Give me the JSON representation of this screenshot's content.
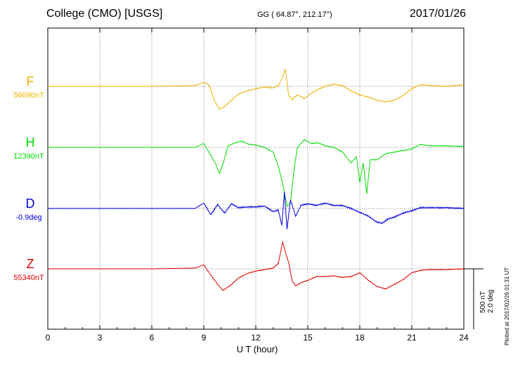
{
  "header": {
    "station": "College (CMO)  [USGS]",
    "coords": "GG ( 64.87°, 212.17°)",
    "date": "2017/01/26"
  },
  "scale_note": {
    "line1": "500 nT",
    "line2": "2.0 deg"
  },
  "plotted_note": "Plotted at 2017/02/26 01:31  UT",
  "colors": {
    "F": "#f0b000",
    "H": "#00dd00",
    "D": "#0000dd",
    "Z": "#dd0000",
    "grid": "#555555"
  },
  "chart_data": {
    "type": "line",
    "xlabel": "U T (hour)",
    "xlim": [
      0,
      24
    ],
    "xticks": [
      0,
      3,
      6,
      9,
      12,
      15,
      18,
      21,
      24
    ],
    "grid": true,
    "series": [
      {
        "name": "F",
        "baseline_label": "56690nT",
        "color": "#f0b000",
        "x": [
          0,
          3,
          6,
          8.5,
          9.0,
          9.3,
          9.6,
          9.9,
          10.2,
          10.6,
          11.0,
          11.5,
          12.0,
          12.5,
          13.0,
          13.3,
          13.5,
          13.7,
          13.9,
          14.1,
          14.4,
          14.8,
          15.2,
          15.6,
          16.0,
          16.5,
          17.0,
          17.5,
          18.0,
          18.5,
          19.0,
          19.5,
          20.0,
          20.5,
          21.0,
          21.5,
          22.0,
          23.0,
          24.0
        ],
        "y": [
          0,
          0,
          0,
          5,
          25,
          10,
          -90,
          -150,
          -130,
          -90,
          -50,
          -30,
          -15,
          -5,
          -10,
          5,
          50,
          110,
          -60,
          -85,
          -55,
          -80,
          -45,
          -20,
          0,
          15,
          5,
          -30,
          -55,
          -70,
          -90,
          -100,
          -90,
          -60,
          -15,
          10,
          5,
          0,
          10
        ]
      },
      {
        "name": "H",
        "baseline_label": "12390nT",
        "color": "#00dd00",
        "x": [
          0,
          3,
          6,
          8.5,
          9.0,
          9.4,
          9.7,
          9.9,
          10.1,
          10.4,
          10.8,
          11.2,
          11.6,
          12.0,
          12.5,
          13.0,
          13.3,
          13.6,
          13.8,
          14.0,
          14.2,
          14.4,
          14.8,
          15.2,
          15.6,
          16.0,
          16.5,
          17.0,
          17.5,
          17.8,
          18.0,
          18.2,
          18.4,
          18.6,
          19.0,
          19.5,
          20.0,
          20.5,
          21.0,
          21.5,
          22.0,
          23.0,
          24.0
        ],
        "y": [
          0,
          0,
          0,
          0,
          25,
          -50,
          -110,
          -170,
          -110,
          10,
          30,
          40,
          20,
          15,
          0,
          -30,
          -120,
          -260,
          -380,
          -360,
          -150,
          0,
          50,
          25,
          30,
          10,
          0,
          -30,
          -100,
          -60,
          -230,
          -100,
          -300,
          -80,
          -80,
          -40,
          -30,
          -20,
          -10,
          20,
          10,
          10,
          5
        ]
      },
      {
        "name": "D",
        "baseline_label": "-0.9deg",
        "color": "#0000dd",
        "x": [
          0,
          3,
          6,
          8.5,
          9.0,
          9.4,
          9.8,
          10.2,
          10.6,
          11.0,
          11.5,
          12.0,
          12.5,
          13.0,
          13.3,
          13.5,
          13.65,
          13.8,
          14.0,
          14.3,
          14.6,
          15.0,
          15.5,
          16.0,
          16.5,
          17.0,
          17.5,
          18.0,
          18.5,
          19.0,
          19.3,
          19.6,
          20.0,
          20.5,
          21.0,
          21.5,
          22.0,
          23.0,
          24.0
        ],
        "y": [
          0,
          0,
          0,
          0,
          0.35,
          -0.4,
          0.25,
          -0.3,
          0.3,
          0.05,
          0.1,
          0.1,
          0.15,
          -0.2,
          -0.1,
          -1.1,
          1.05,
          -1.35,
          0.55,
          -0.5,
          0.2,
          0.3,
          0.2,
          0.35,
          0.2,
          0.2,
          0.0,
          -0.25,
          -0.5,
          -0.9,
          -0.95,
          -0.7,
          -0.55,
          -0.3,
          -0.15,
          0.05,
          0.05,
          0.05,
          0.0
        ]
      },
      {
        "name": "Z",
        "baseline_label": "55340nT",
        "color": "#dd0000",
        "x": [
          0,
          3,
          6,
          8.5,
          9.0,
          9.4,
          9.8,
          10.1,
          10.5,
          11.0,
          11.5,
          12.0,
          12.5,
          13.0,
          13.3,
          13.55,
          13.75,
          13.9,
          14.1,
          14.3,
          14.6,
          15.0,
          15.5,
          16.0,
          16.5,
          17.0,
          17.5,
          18.0,
          18.5,
          19.0,
          19.5,
          20.0,
          20.5,
          21.0,
          21.5,
          22.0,
          23.0,
          24.0
        ],
        "y": [
          0,
          0,
          0,
          5,
          25,
          -40,
          -100,
          -140,
          -110,
          -60,
          -30,
          -15,
          -5,
          5,
          35,
          175,
          90,
          40,
          -80,
          -110,
          -90,
          -75,
          -50,
          -50,
          -45,
          -55,
          -50,
          -25,
          -75,
          -115,
          -130,
          -100,
          -70,
          -25,
          -10,
          -5,
          -5,
          0
        ]
      }
    ]
  }
}
